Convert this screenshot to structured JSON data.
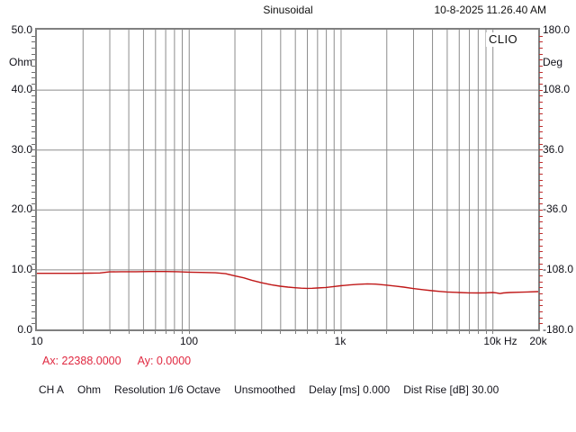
{
  "header": {
    "title": "Sinusoidal",
    "timestamp": "10-8-2025 11.26.40 AM"
  },
  "branding": {
    "logo": "CLIO"
  },
  "cursor_readout": {
    "ax": "Ax: 22388.0000",
    "ay": "Ay: 0.0000",
    "color": "#e02840"
  },
  "status_bar": {
    "items": [
      "CH A",
      "Ohm",
      "Resolution 1/6 Octave",
      "Unsmoothed",
      "Delay [ms] 0.000",
      "Dist Rise [dB] 30.00"
    ]
  },
  "chart_data": {
    "type": "line",
    "title": "Sinusoidal",
    "x_axis": {
      "scale": "log",
      "unit": "Hz",
      "min": 10,
      "max": 20000,
      "major_ticks": [
        {
          "label": "10",
          "f": 10
        },
        {
          "label": "100",
          "f": 100
        },
        {
          "label": "1k",
          "f": 1000
        },
        {
          "label": "10k",
          "f": 10000
        },
        {
          "label": "20k",
          "f": 20000
        }
      ],
      "grid_freqs": [
        20,
        30,
        40,
        50,
        60,
        70,
        80,
        90,
        100,
        200,
        300,
        400,
        500,
        600,
        700,
        800,
        900,
        1000,
        2000,
        3000,
        4000,
        5000,
        6000,
        7000,
        8000,
        9000,
        10000
      ]
    },
    "y_left": {
      "unit": "Ohm",
      "min": 0,
      "max": 50,
      "ticks": [
        {
          "label": "50.0",
          "v": 50
        },
        {
          "label": "40.0",
          "v": 40
        },
        {
          "label": "30.0",
          "v": 30
        },
        {
          "label": "20.0",
          "v": 20
        },
        {
          "label": "10.0",
          "v": 10
        },
        {
          "label": "0.0",
          "v": 0
        }
      ],
      "grid_values": [
        40,
        30,
        20,
        10
      ],
      "minor_step": 1,
      "tick_color": "#6f6f6f"
    },
    "y_right": {
      "unit": "Deg",
      "min": -180,
      "max": 180,
      "ticks": [
        {
          "label": "180.0",
          "v": 180
        },
        {
          "label": "108.0",
          "v": 108
        },
        {
          "label": "36.0",
          "v": 36
        },
        {
          "label": "-36.0",
          "v": -36
        },
        {
          "label": "-108.0",
          "v": -108
        },
        {
          "label": "-180.0",
          "v": -180
        }
      ],
      "minor_step": 7.2,
      "tick_color": "#c03030"
    },
    "grid_color": "#8c8c8c",
    "frame_color": "#808080",
    "legend": false,
    "series": [
      {
        "name": "impedance-magnitude",
        "color": "#c01818",
        "y_axis": "left",
        "points": [
          [
            10,
            9.35
          ],
          [
            14,
            9.35
          ],
          [
            18,
            9.35
          ],
          [
            22,
            9.38
          ],
          [
            26,
            9.42
          ],
          [
            30,
            9.6
          ],
          [
            36,
            9.62
          ],
          [
            45,
            9.63
          ],
          [
            55,
            9.65
          ],
          [
            70,
            9.65
          ],
          [
            85,
            9.62
          ],
          [
            100,
            9.55
          ],
          [
            120,
            9.5
          ],
          [
            150,
            9.45
          ],
          [
            175,
            9.3
          ],
          [
            200,
            8.95
          ],
          [
            230,
            8.6
          ],
          [
            260,
            8.2
          ],
          [
            300,
            7.8
          ],
          [
            350,
            7.45
          ],
          [
            400,
            7.2
          ],
          [
            450,
            7.05
          ],
          [
            500,
            6.95
          ],
          [
            550,
            6.88
          ],
          [
            600,
            6.85
          ],
          [
            650,
            6.86
          ],
          [
            700,
            6.9
          ],
          [
            800,
            7.0
          ],
          [
            900,
            7.15
          ],
          [
            1000,
            7.28
          ],
          [
            1150,
            7.42
          ],
          [
            1300,
            7.52
          ],
          [
            1500,
            7.6
          ],
          [
            1700,
            7.55
          ],
          [
            2000,
            7.38
          ],
          [
            2300,
            7.22
          ],
          [
            2600,
            7.05
          ],
          [
            3000,
            6.82
          ],
          [
            3500,
            6.62
          ],
          [
            4000,
            6.45
          ],
          [
            4500,
            6.33
          ],
          [
            5000,
            6.25
          ],
          [
            6000,
            6.15
          ],
          [
            7000,
            6.1
          ],
          [
            8000,
            6.08
          ],
          [
            9000,
            6.1
          ],
          [
            10000,
            6.15
          ],
          [
            10600,
            6.1
          ],
          [
            11200,
            5.98
          ],
          [
            11800,
            6.08
          ],
          [
            13000,
            6.15
          ],
          [
            15000,
            6.2
          ],
          [
            17000,
            6.24
          ],
          [
            20000,
            6.3
          ]
        ]
      }
    ]
  }
}
